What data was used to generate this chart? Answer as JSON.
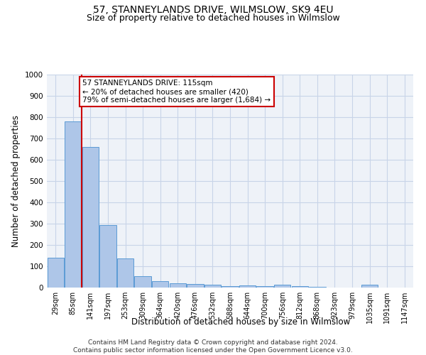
{
  "title": "57, STANNEYLANDS DRIVE, WILMSLOW, SK9 4EU",
  "subtitle": "Size of property relative to detached houses in Wilmslow",
  "xlabel": "Distribution of detached houses by size in Wilmslow",
  "ylabel": "Number of detached properties",
  "bar_labels": [
    "29sqm",
    "85sqm",
    "141sqm",
    "197sqm",
    "253sqm",
    "309sqm",
    "364sqm",
    "420sqm",
    "476sqm",
    "532sqm",
    "588sqm",
    "644sqm",
    "700sqm",
    "756sqm",
    "812sqm",
    "868sqm",
    "923sqm",
    "979sqm",
    "1035sqm",
    "1091sqm",
    "1147sqm"
  ],
  "bar_values": [
    140,
    780,
    660,
    295,
    138,
    55,
    30,
    20,
    18,
    13,
    8,
    9,
    8,
    12,
    8,
    2,
    0,
    0,
    12,
    0,
    0
  ],
  "bar_color": "#aec6e8",
  "bar_edge_color": "#5b9bd5",
  "vline_x_index": 1,
  "vline_color": "#cc0000",
  "ylim": [
    0,
    1000
  ],
  "yticks": [
    0,
    100,
    200,
    300,
    400,
    500,
    600,
    700,
    800,
    900,
    1000
  ],
  "annotation_text": "57 STANNEYLANDS DRIVE: 115sqm\n← 20% of detached houses are smaller (420)\n79% of semi-detached houses are larger (1,684) →",
  "annotation_box_color": "#ffffff",
  "annotation_box_edge": "#cc0000",
  "footer_line1": "Contains HM Land Registry data © Crown copyright and database right 2024.",
  "footer_line2": "Contains public sector information licensed under the Open Government Licence v3.0.",
  "title_fontsize": 10,
  "subtitle_fontsize": 9,
  "axis_label_fontsize": 8.5,
  "tick_fontsize": 7.5,
  "annotation_fontsize": 7.5,
  "footer_fontsize": 6.5,
  "grid_color": "#c8d4e8",
  "background_color": "#eef2f8"
}
